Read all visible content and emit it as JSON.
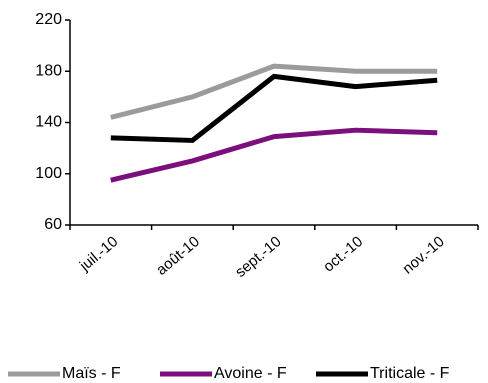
{
  "chart_data": {
    "type": "line",
    "categories": [
      "juil.-10",
      "août-10",
      "sept.-10",
      "oct.-10",
      "nov.-10"
    ],
    "yticks": [
      "60",
      "100",
      "140",
      "180",
      "220"
    ],
    "ylim": [
      60,
      220
    ],
    "grid": false,
    "legend_position": "bottom",
    "series": [
      {
        "name": "Maïs - F",
        "color": "#9b9b9b",
        "values": [
          144,
          160,
          184,
          180,
          180
        ]
      },
      {
        "name": "Avoine - F",
        "color": "#7b0f7b",
        "values": [
          95,
          110,
          129,
          134,
          132
        ]
      },
      {
        "name": "Triticale - F",
        "color": "#000000",
        "values": [
          128,
          126,
          176,
          168,
          173
        ]
      }
    ]
  }
}
